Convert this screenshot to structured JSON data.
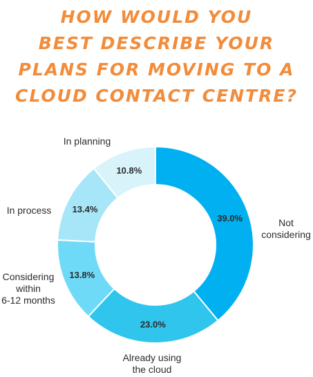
{
  "title_lines": [
    "How Would you",
    "Best Describe your",
    "Plans for Moving to a",
    "Cloud Contact Centre?"
  ],
  "chart_data": {
    "type": "pie",
    "variant": "donut",
    "title": "How Would you Best Describe your Plans for Moving to a Cloud Contact Centre?",
    "categories": [
      "Not considering",
      "Already using the cloud",
      "Considering within 6-12 months",
      "In process",
      "In planning"
    ],
    "values": [
      39.0,
      23.0,
      13.8,
      13.4,
      10.8
    ],
    "value_labels": [
      "39.0%",
      "23.0%",
      "13.8%",
      "13.4%",
      "10.8%"
    ],
    "label_lines": [
      [
        "Not",
        "considering"
      ],
      [
        "Already using",
        "the cloud"
      ],
      [
        "Considering",
        "within",
        "6-12 months"
      ],
      [
        "In process"
      ],
      [
        "In planning"
      ]
    ],
    "colors": [
      "#00B0F0",
      "#2FC5EC",
      "#6FDAF7",
      "#A7E6F8",
      "#D9F3FA"
    ],
    "start": "12 o'clock",
    "direction": "clockwise",
    "legend": "none"
  }
}
